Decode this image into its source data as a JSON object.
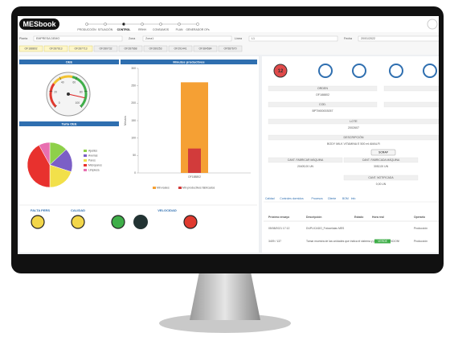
{
  "header": {
    "logo": "MESbook",
    "nav": [
      "PRODUCCIÓN",
      "SITUACIÓN",
      "CONTROL",
      "RRHH",
      "CONSUMOS",
      "PLAN",
      "GENERADOR OFs"
    ]
  },
  "filters": [
    {
      "label": "Planta",
      "value": "EMPRESA DEMO"
    },
    {
      "label": "Zona",
      "value": "Zona1"
    },
    {
      "label": "Línea",
      "value": "L1"
    },
    {
      "label": "Fecha",
      "value": "20/01/2022"
    }
  ],
  "orders": [
    "OF188802",
    "OF287613",
    "OF287713",
    "OF280732",
    "OF287668",
    "OF280253",
    "OF291441",
    "OF384584",
    "OF587670"
  ],
  "chart_data": [
    {
      "type": "gauge",
      "title": "OEE",
      "value": 88,
      "ylim": [
        0,
        100
      ],
      "yticks": [
        0,
        20,
        40,
        60,
        80,
        100
      ]
    },
    {
      "type": "pie",
      "title": "Tarta OEE",
      "categories": [
        "Ajustes",
        "Averías",
        "Paros",
        "Microparos",
        "Limpieza"
      ],
      "values": [
        13,
        17,
        20,
        42,
        8
      ],
      "colors": [
        "#8ed04a",
        "#7b5fc6",
        "#f2e04a",
        "#e8312e",
        "#e86fb0"
      ]
    },
    {
      "type": "bar",
      "title": "Minutos productivos",
      "y_label": "Minutos",
      "categories": [
        "OF188802"
      ],
      "series": [
        {
          "name": "Min reales",
          "color": "#f5a034",
          "values": [
            260
          ]
        },
        {
          "name": "Min productivos fabricados",
          "color": "#d23b3b",
          "values": [
            70
          ]
        }
      ],
      "ylim": [
        0,
        300
      ],
      "yticks": [
        0,
        50,
        100,
        150,
        200,
        250,
        300
      ]
    }
  ],
  "indicators": [
    "FALTA PERS",
    "CALIDAD",
    "VELOCIDAD"
  ],
  "detail": {
    "badge": "12",
    "fields": [
      {
        "label": "ORDEN",
        "value": "OF188802"
      },
      {
        "label": "COD.",
        "value": "BPTM00003057"
      },
      {
        "label": "LOTE",
        "value": "2002607"
      },
      {
        "label": "DESCRIPCIÓN",
        "value": "BODY MILK VITAMINA E 500 ml AMALFI"
      }
    ],
    "scrap": "SCRAP",
    "quantities": [
      {
        "label": "CANT. FABRICAR MÁQUINA",
        "value": "20409,00 UN"
      },
      {
        "label": "CANT. FABRICADA MÁQUINA",
        "value": "3052,00 UN"
      },
      {
        "label": "CANT. NOTIFICADA",
        "value": "0,00 UN"
      }
    ]
  },
  "tabs": [
    "Calidad",
    "Controles dormidos",
    "Procesos",
    "Cliente",
    "BOM",
    "Info"
  ],
  "table": {
    "headers": [
      "Próximo ensayo",
      "Descripción",
      "Estado",
      "Hora real",
      "Operario"
    ],
    "rows": [
      [
        "05/08/2021 17:12",
        "DUPLICADO_Fotocelulas MES",
        "Producción"
      ],
      [
        "3409 / 137",
        "Tomar muestra de las unidades que indica el sistema y pesarlas. ATENCION!",
        "VERDE",
        "Producción"
      ]
    ]
  }
}
